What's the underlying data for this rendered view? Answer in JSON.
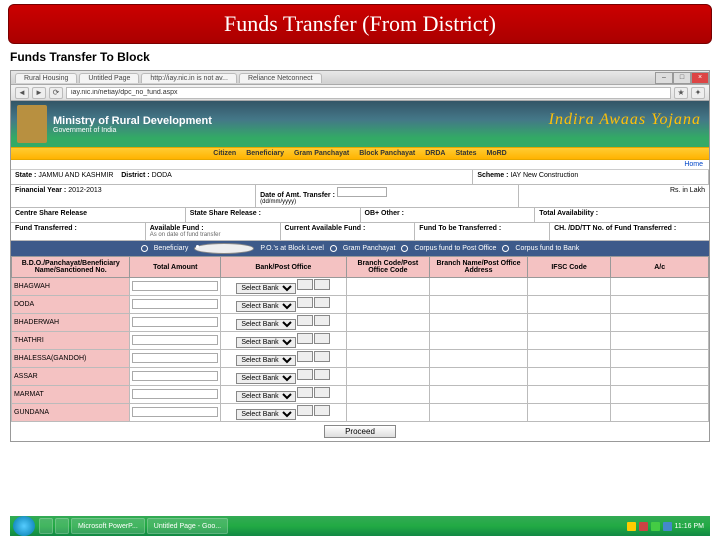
{
  "title_bar": "Funds Transfer (From District)",
  "subtitle": "Funds Transfer To Block",
  "browser": {
    "tabs": [
      "Rural Housing",
      "Untitled Page",
      "http://iay.nic.in is not av...",
      "Reliance Netconnect"
    ],
    "url": "iay.nic.in/netiay/dpc_no_fund.aspx"
  },
  "banner": {
    "ministry": "Ministry of Rural Development",
    "gov": "Government of India",
    "scheme": "Indira Awaas Yojana"
  },
  "menu": [
    "Citizen",
    "Beneficiary",
    "Gram Panchayat",
    "Block Panchayat",
    "DRDA",
    "States",
    "MoRD"
  ],
  "home": "Home",
  "info": {
    "state_lbl": "State :",
    "state_val": "JAMMU AND KASHMIR",
    "district_lbl": "District :",
    "district_val": "DODA",
    "scheme_lbl": "Scheme :",
    "scheme_val": "IAY New Construction",
    "fy_lbl": "Financial Year :",
    "fy_val": "2012-2013",
    "date_lbl": "Date of Amt. Transfer :",
    "date_hint": "(dd/mm/yyyy)",
    "rs_lakh": "Rs. in Lakh",
    "csr": "Centre Share Release",
    "ssr": "State Share Release :",
    "ob": "OB+ Other :",
    "ta": "Total Availability :",
    "ft": "Fund Transferred :",
    "af": "Available Fund :",
    "af_hint": "As on date of fund transfer",
    "caf": "Current Available Fund :",
    "ftt": "Fund To be Transferred :",
    "chq": "CH. /DD/TT No. of Fund Transferred :"
  },
  "filters": {
    "f1": "Beneficiary",
    "f2": "P.O.'s at Block Level",
    "f3": "Gram Panchayat",
    "f4": "Corpus fund to Post Office",
    "f5": "Corpus fund to Bank"
  },
  "headers": {
    "h1": "B.D.O./Panchayat/Beneficiary Name/Sanctioned No.",
    "h2": "Total Amount",
    "h3": "Bank/Post Office",
    "h4": "Branch Code/Post Office Code",
    "h5": "Branch Name/Post Office Address",
    "h6": "IFSC Code",
    "h7": "A/c"
  },
  "blocks": [
    "BHAGWAH",
    "DODA",
    "BHADERWAH",
    "THATHRI",
    "BHALESSA(GANDOH)",
    "ASSAR",
    "MARMAT",
    "GUNDANA"
  ],
  "select_bank": "Select Bank",
  "proceed": "Proceed",
  "taskbar": {
    "items": [
      "",
      "Microsoft PowerP...",
      "Untitled Page - Goo..."
    ],
    "time": "11:16 PM"
  }
}
